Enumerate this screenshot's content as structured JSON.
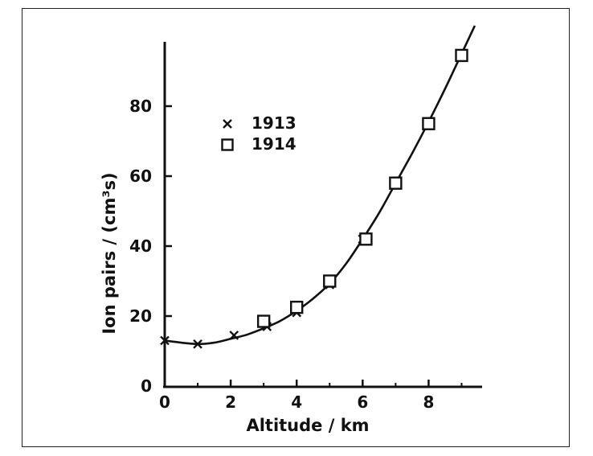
{
  "chart_data": {
    "type": "scatter",
    "xlabel": "Altitude / km",
    "ylabel": "Ion pairs / (cm³s)",
    "xlim": [
      0,
      9.5
    ],
    "ylim": [
      0,
      100
    ],
    "xticks": [
      0,
      2,
      4,
      6,
      8
    ],
    "yticks": [
      0,
      20,
      40,
      60,
      80
    ],
    "grid": false,
    "legend_position": "top-left",
    "series": [
      {
        "name": "1913",
        "marker": "cross",
        "points": [
          [
            0,
            13
          ],
          [
            1,
            12
          ],
          [
            2.1,
            14.5
          ],
          [
            3.1,
            17
          ],
          [
            4,
            21
          ],
          [
            5,
            29
          ],
          [
            6,
            42
          ]
        ]
      },
      {
        "name": "1914",
        "marker": "square",
        "points": [
          [
            3,
            18.5
          ],
          [
            4,
            22.5
          ],
          [
            5,
            30
          ],
          [
            6.1,
            42
          ],
          [
            7,
            58
          ],
          [
            8,
            75
          ],
          [
            9,
            94.5
          ]
        ]
      }
    ],
    "fit_curve": [
      [
        0,
        13
      ],
      [
        0.5,
        12.4
      ],
      [
        1,
        12
      ],
      [
        1.5,
        12.4
      ],
      [
        2,
        13.5
      ],
      [
        2.5,
        14.7
      ],
      [
        3,
        16.5
      ],
      [
        3.5,
        18.6
      ],
      [
        4,
        21.5
      ],
      [
        4.5,
        25
      ],
      [
        5,
        29.3
      ],
      [
        5.5,
        35
      ],
      [
        6,
        42
      ],
      [
        6.5,
        49.5
      ],
      [
        7,
        58
      ],
      [
        7.5,
        66.5
      ],
      [
        8,
        75.5
      ],
      [
        8.5,
        85
      ],
      [
        9,
        95
      ],
      [
        9.4,
        103
      ]
    ]
  }
}
